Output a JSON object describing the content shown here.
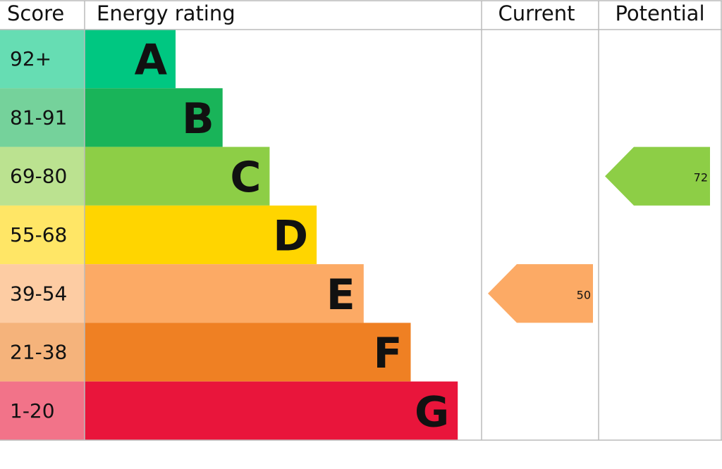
{
  "chart_data": {
    "type": "epc",
    "headers": {
      "score": "Score",
      "rating": "Energy rating",
      "current": "Current",
      "potential": "Potential"
    },
    "bands": [
      {
        "score": "92+",
        "letter": "A",
        "color": "#00c781"
      },
      {
        "score": "81-91",
        "letter": "B",
        "color": "#19b459"
      },
      {
        "score": "69-80",
        "letter": "C",
        "color": "#8dce46"
      },
      {
        "score": "55-68",
        "letter": "D",
        "color": "#ffd500"
      },
      {
        "score": "39-54",
        "letter": "E",
        "color": "#fcaa65"
      },
      {
        "score": "21-38",
        "letter": "F",
        "color": "#ef8023"
      },
      {
        "score": "1-20",
        "letter": "G",
        "color": "#e9153b"
      }
    ],
    "current": 50,
    "potential": 72
  }
}
